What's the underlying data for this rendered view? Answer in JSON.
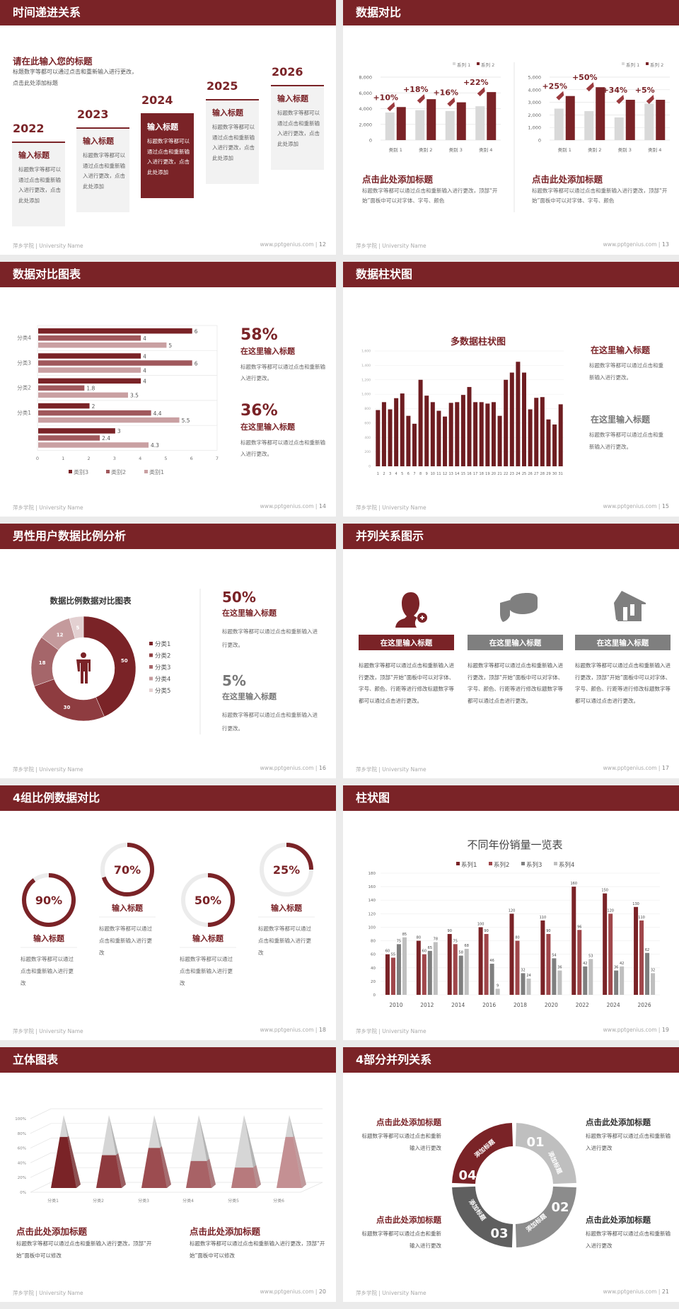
{
  "footer": {
    "left": "萍乡学院 | University Name",
    "right": "www.pptgenius.com"
  },
  "colors": {
    "primary": "#7a2327",
    "mid": "#a0585c",
    "light": "#c9a0a2",
    "gray": "#7f7f7f",
    "light_gray": "#d9d9d9"
  },
  "slides": [
    {
      "page": "12",
      "title": "时间递进关系",
      "heading": "请在此输入您的标题",
      "desc": "标题数字等都可以通过点击和重新输入进行更改，点击此处添加标题",
      "highlighted": "2024",
      "steps": [
        {
          "year": "2022",
          "title": "输入标题",
          "text": "标题数字等都可以通过点击和重新输入进行更改，点击此处添加"
        },
        {
          "year": "2023",
          "title": "输入标题",
          "text": "标题数字等都可以通过点击和重新输入进行更改，点击此处添加"
        },
        {
          "year": "2024",
          "title": "输入标题",
          "text": "标题数字等都可以通过点击和重新输入进行更改，点击此处添加"
        },
        {
          "year": "2025",
          "title": "输入标题",
          "text": "标题数字等都可以通过点击和重新输入进行更改，点击此处添加"
        },
        {
          "year": "2026",
          "title": "输入标题",
          "text": "标题数字等都可以通过点击和重新输入进行更改，点击此处添加"
        }
      ]
    },
    {
      "page": "13",
      "title": "数据对比",
      "panels": [
        {
          "heading": "点击此处添加标题",
          "text": "标题数字等都可以通过点击和重新输入进行更改，顶部“开始”面板中可以对字体、字号、颜色"
        },
        {
          "heading": "点击此处添加标题",
          "text": "标题数字等都可以通过点击和重新输入进行更改，顶部“开始”面板中可以对字体、字号、颜色"
        }
      ]
    },
    {
      "page": "14",
      "title": "数据对比图表",
      "stats": [
        {
          "value": "58%",
          "heading": "在这里输入标题",
          "text": "标题数字等都可以通过点击和重新输入进行更改。"
        },
        {
          "value": "36%",
          "heading": "在这里输入标题",
          "text": "标题数字等都可以通过点击和重新输入进行更改。"
        }
      ]
    },
    {
      "page": "15",
      "title": "数据柱状图",
      "blocks": [
        {
          "heading": "在这里输入标题",
          "text": "标题数字等都可以通过点击和重新输入进行更改。"
        },
        {
          "heading": "在这里输入标题",
          "text": "标题数字等都可以通过点击和重新输入进行更改。"
        }
      ]
    },
    {
      "page": "16",
      "title": "男性用户数据比例分析",
      "stats": [
        {
          "value": "50%",
          "heading": "在这里输入标题",
          "text": "标题数字等都可以通过点击和重新输入进行更改。"
        },
        {
          "value": "5%",
          "heading": "在这里输入标题",
          "text": "标题数字等都可以通过点击和重新输入进行更改。"
        }
      ]
    },
    {
      "page": "17",
      "title": "并列关系图示",
      "items": [
        {
          "icon": "female-user-add-icon",
          "label": "在这里输入标题",
          "text": "标题数字等都可以通过点击和重新输入进行更改，顶部“开始”面板中可以对字体、字号、颜色、行距等进行修改标题数字等都可以通过点击进行更改。"
        },
        {
          "icon": "pie-chart-3d-icon",
          "label": "在这里输入标题",
          "text": "标题数字等都可以通过点击和重新输入进行更改，顶部“开始”面板中可以对字体、字号、颜色、行距等进行修改标题数字等都可以通过点击进行更改。"
        },
        {
          "icon": "storefront-icon",
          "label": "在这里输入标题",
          "text": "标题数字等都可以通过点击和重新输入进行更改，顶部“开始”面板中可以对字体、字号、颜色、行距等进行修改标题数字等都可以通过点击进行更改。"
        }
      ]
    },
    {
      "page": "18",
      "title": "4组比例数据对比",
      "rings": [
        {
          "value": 90,
          "label": "90%",
          "heading": "输入标题",
          "text": "标题数字等都可以通过点击和重新输入进行更改"
        },
        {
          "value": 70,
          "label": "70%",
          "heading": "输入标题",
          "text": "标题数字等都可以通过点击和重新输入进行更改"
        },
        {
          "value": 50,
          "label": "50%",
          "heading": "输入标题",
          "text": "标题数字等都可以通过点击和重新输入进行更改"
        },
        {
          "value": 25,
          "label": "25%",
          "heading": "输入标题",
          "text": "标题数字等都可以通过点击和重新输入进行更改"
        }
      ]
    },
    {
      "page": "19",
      "title": "柱状图"
    },
    {
      "page": "20",
      "title": "立体图表",
      "panels": [
        {
          "heading": "点击此处添加标题",
          "text": "标题数字等都可以通过点击和重新输入进行更改，顶部“开始”面板中可以修改"
        },
        {
          "heading": "点击此处添加标题",
          "text": "标题数字等都可以通过点击和重新输入进行更改，顶部“开始”面板中可以修改"
        }
      ]
    },
    {
      "page": "21",
      "title": "4部分并列关系",
      "segments": [
        {
          "number": "01",
          "label": "添加标题",
          "color": "#bfbfbf"
        },
        {
          "number": "02",
          "label": "添加标题",
          "color": "#8c8c8c"
        },
        {
          "number": "03",
          "label": "添加标题",
          "color": "#5f5f5f"
        },
        {
          "number": "04",
          "label": "添加标题",
          "color": "#7a2327"
        }
      ],
      "blocks": [
        {
          "heading": "点击此处添加标题",
          "text": "标题数字等都可以通过点击和重新输入进行更改"
        },
        {
          "heading": "点击此处添加标题",
          "text": "标题数字等都可以通过点击和重新输入进行更改"
        },
        {
          "heading": "点击此处添加标题",
          "text": "标题数字等都可以通过点击和重新输入进行更改"
        },
        {
          "heading": "点击此处添加标题",
          "text": "标题数字等都可以通过点击和重新输入进行更改"
        }
      ]
    }
  ],
  "chart_data": [
    {
      "type": "bar",
      "categories": [
        "类别 1",
        "类别 2",
        "类别 3",
        "类别 4"
      ],
      "series": [
        {
          "name": "系列 1",
          "values": [
            3500,
            3800,
            3700,
            4300
          ]
        },
        {
          "name": "系列 2",
          "values": [
            4200,
            5200,
            4800,
            6100
          ]
        }
      ],
      "annotations": [
        "+10%",
        "+18%",
        "+16%",
        "+22%"
      ],
      "ylim": [
        0,
        8000
      ],
      "yticks": [
        "0",
        "2,000",
        "4,000",
        "6,000",
        "8,000"
      ],
      "grid": true,
      "legend": "top-right"
    },
    {
      "type": "bar",
      "categories": [
        "类别 1",
        "类别 2",
        "类别 3",
        "类别 4"
      ],
      "series": [
        {
          "name": "系列 1",
          "values": [
            2500,
            2300,
            1800,
            2900
          ]
        },
        {
          "name": "系列 2",
          "values": [
            3500,
            4200,
            3200,
            3200
          ]
        }
      ],
      "annotations": [
        "+25%",
        "+50%",
        "+34%",
        "+5%"
      ],
      "ylim": [
        0,
        5000
      ],
      "yticks": [
        "0",
        "1,000",
        "2,000",
        "3,000",
        "4,000",
        "5,000"
      ],
      "grid": true,
      "legend": "top-right"
    },
    {
      "type": "bar",
      "orientation": "horizontal",
      "categories": [
        "分类4",
        "分类3",
        "分类2",
        "分类1",
        ""
      ],
      "series": [
        {
          "name": "类别3",
          "values": [
            6,
            4,
            4,
            2,
            3
          ]
        },
        {
          "name": "类别2",
          "values": [
            4,
            6,
            1.8,
            4.4,
            2.4
          ]
        },
        {
          "name": "类别1",
          "values": [
            5,
            4,
            3.5,
            5.5,
            4.3
          ]
        }
      ],
      "xlim": [
        0,
        7
      ],
      "xticks": [
        "0",
        "1",
        "2",
        "3",
        "4",
        "5",
        "6",
        "7"
      ],
      "grid": true,
      "legend": "bottom"
    },
    {
      "type": "bar",
      "title": "多数据柱状图",
      "categories": [
        "1",
        "2",
        "3",
        "4",
        "5",
        "6",
        "7",
        "8",
        "9",
        "10",
        "11",
        "12",
        "13",
        "14",
        "15",
        "16",
        "17",
        "18",
        "19",
        "20",
        "21",
        "22",
        "23",
        "24",
        "25",
        "26",
        "27",
        "28",
        "29",
        "30",
        "31"
      ],
      "values": [
        780,
        890,
        790,
        945,
        1010,
        700,
        590,
        1200,
        980,
        890,
        770,
        690,
        880,
        890,
        990,
        1100,
        890,
        890,
        870,
        890,
        700,
        1200,
        1300,
        1450,
        1300,
        790,
        950,
        960,
        650,
        580,
        860
      ],
      "ylim": [
        0,
        1600
      ],
      "yticks": [
        "0",
        "200",
        "400",
        "600",
        "800",
        "1,000",
        "1,200",
        "1,400",
        "1,600"
      ],
      "grid": true
    },
    {
      "type": "pie",
      "variant": "donut",
      "title": "数据比例数据对比图表",
      "categories": [
        "分类1",
        "分类2",
        "分类3",
        "分类4",
        "分类5"
      ],
      "values": [
        50,
        30,
        18,
        12,
        5
      ],
      "colors": [
        "#7a2327",
        "#8e3c40",
        "#a5666a",
        "#c49a9c",
        "#e3d0d1"
      ],
      "legend": "right"
    },
    {
      "type": "bar",
      "title": "不同年份销量一览表",
      "categories": [
        "2010",
        "2012",
        "2014",
        "2016",
        "2018",
        "2020",
        "2022",
        "2024",
        "2026"
      ],
      "series": [
        {
          "name": "系列1",
          "values": [
            60,
            80,
            90,
            100,
            120,
            110,
            160,
            150,
            130
          ],
          "color": "#7a2327"
        },
        {
          "name": "系列2",
          "values": [
            55,
            60,
            75,
            90,
            80,
            90,
            96,
            120,
            110
          ],
          "color": "#a0474b"
        },
        {
          "name": "系列3",
          "values": [
            75,
            65,
            58,
            46,
            32,
            54,
            42,
            36,
            62
          ],
          "color": "#7f7f7f"
        },
        {
          "name": "系列4",
          "values": [
            85,
            78,
            68,
            9,
            24,
            36,
            53,
            42,
            32
          ],
          "color": "#bfbfbf"
        }
      ],
      "ylim": [
        0,
        180
      ],
      "yticks": [
        "0",
        "20",
        "40",
        "60",
        "80",
        "100",
        "120",
        "140",
        "160",
        "180"
      ],
      "grid": true,
      "legend": "top"
    },
    {
      "type": "bar",
      "variant": "3d-pyramid",
      "categories": [
        "分类1",
        "分类2",
        "分类3",
        "分类4",
        "分类5",
        "分类6"
      ],
      "values": [
        70,
        45,
        55,
        37,
        28,
        70
      ],
      "colors": [
        "#7a2327",
        "#8e3a3e",
        "#9c4c50",
        "#a86266",
        "#b77a7d",
        "#c49093"
      ],
      "ylim": [
        0,
        100
      ],
      "yticks": [
        "0%",
        "20%",
        "40%",
        "60%",
        "80%",
        "100%"
      ],
      "grid": true
    }
  ]
}
